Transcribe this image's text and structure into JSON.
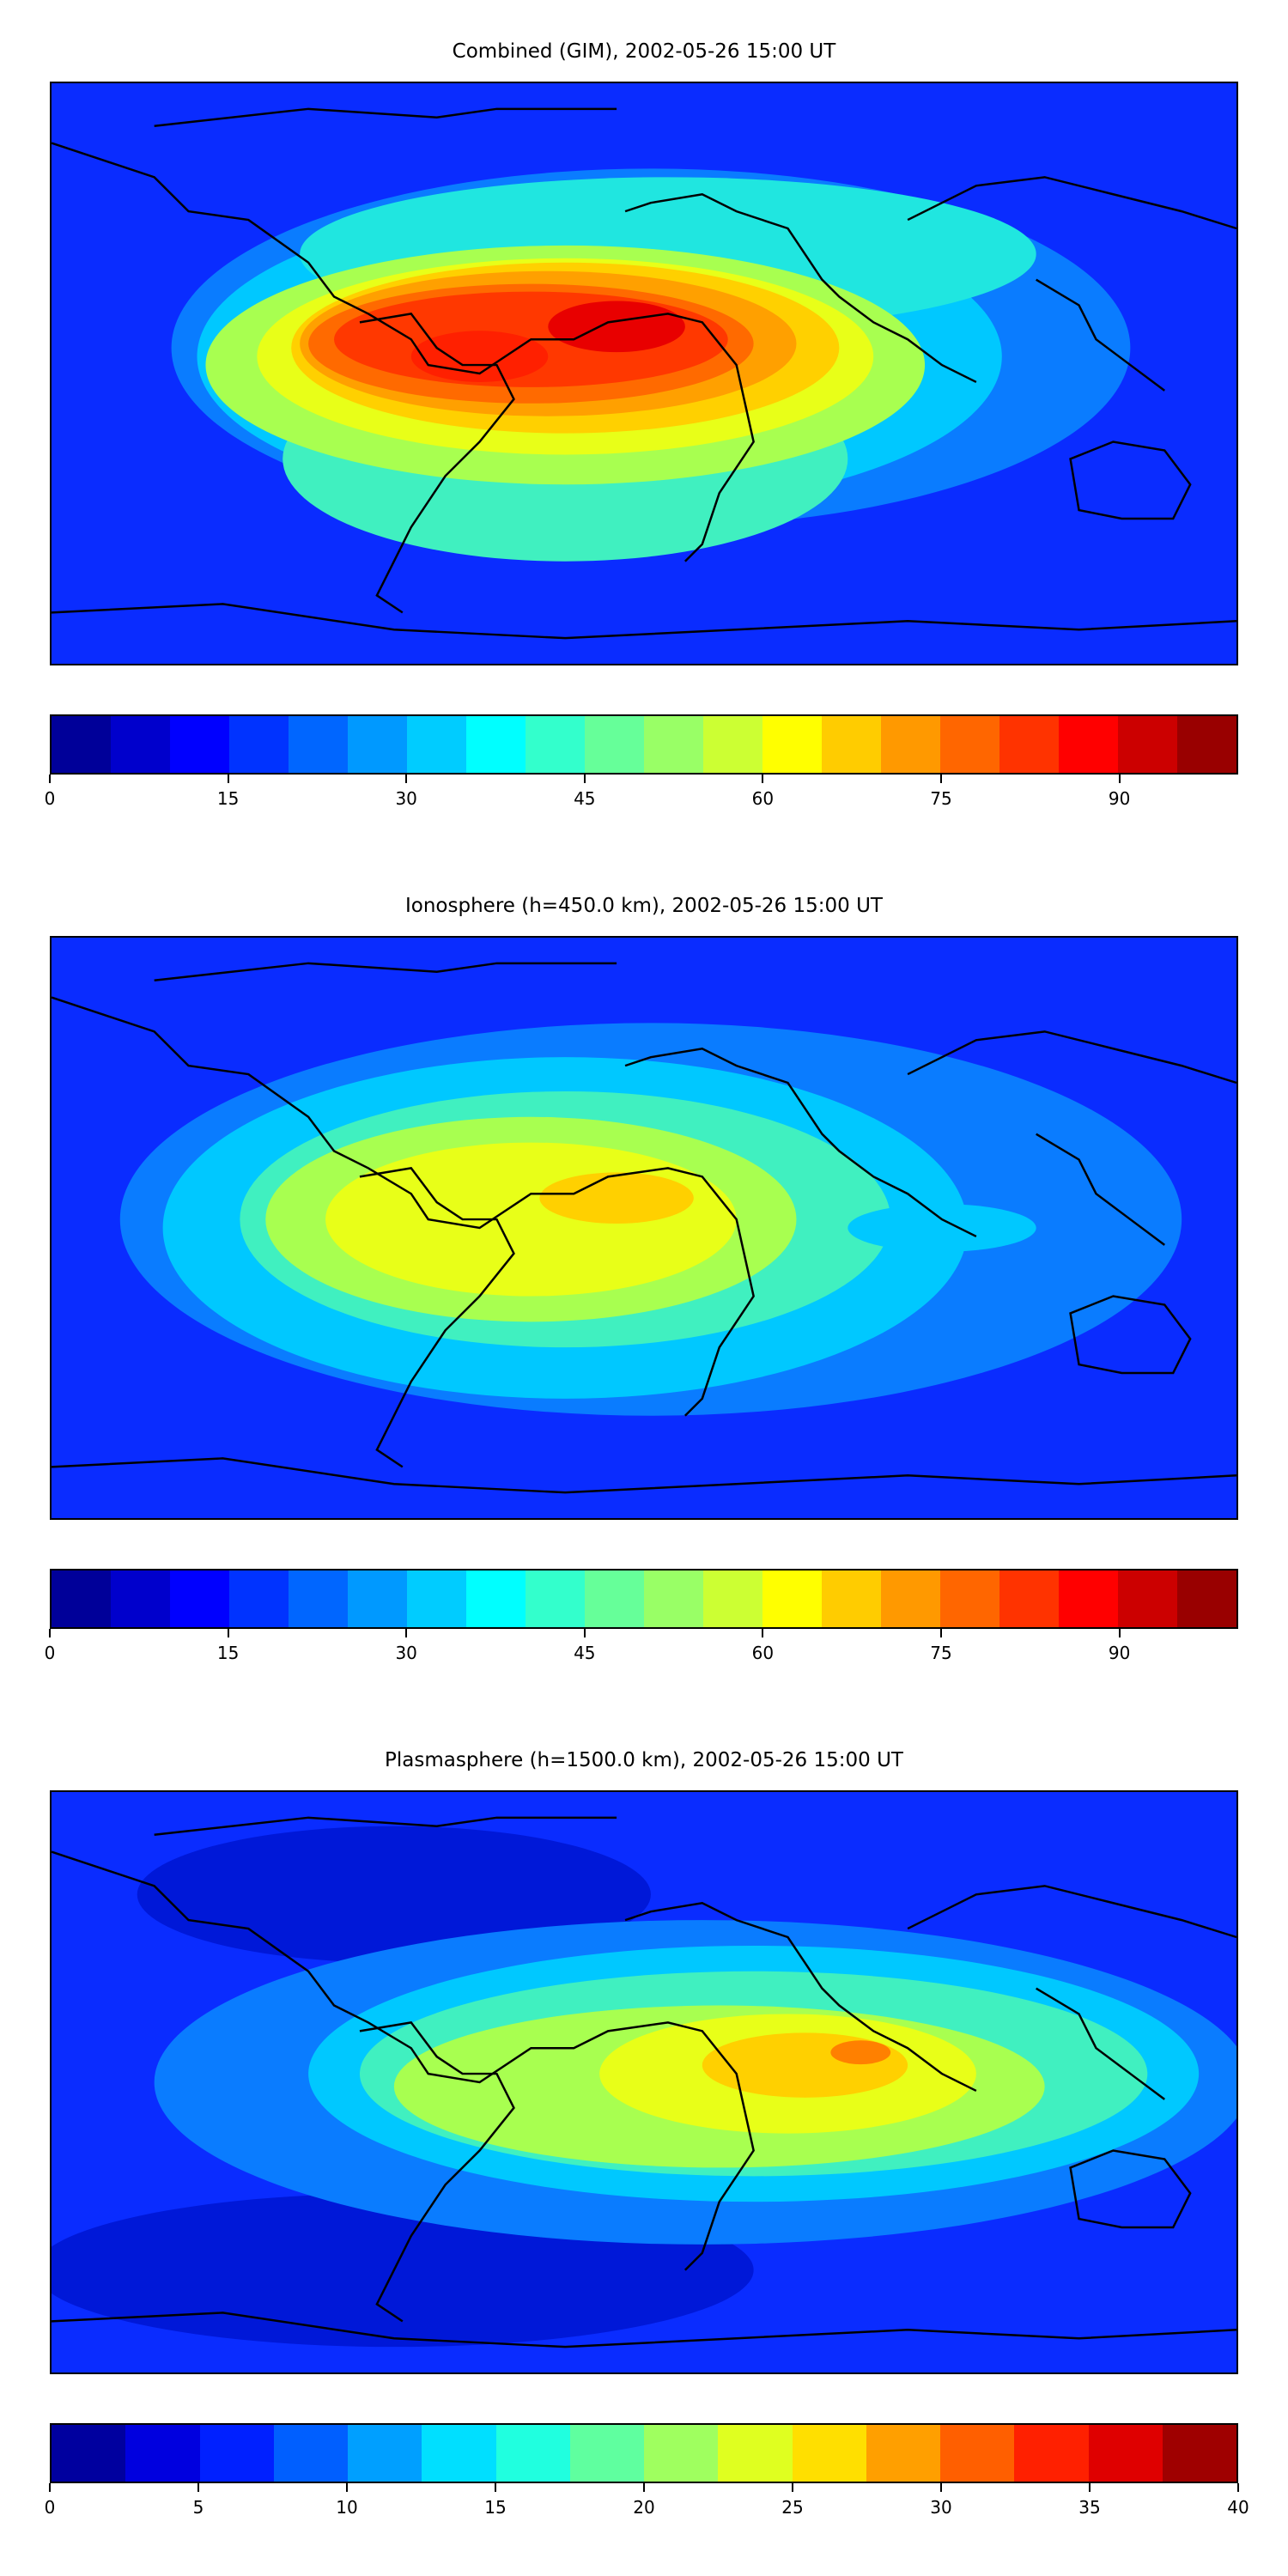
{
  "panels": [
    {
      "title": "Combined (GIM), 2002-05-26 15:00 UT",
      "colorbar": {
        "min": 0,
        "max": 100,
        "step": 5,
        "tick_labels": [
          "0",
          "15",
          "30",
          "45",
          "60",
          "75",
          "90"
        ],
        "tick_values": [
          0,
          15,
          30,
          45,
          60,
          75,
          90
        ]
      }
    },
    {
      "title": "Ionosphere  (h=450.0 km), 2002-05-26 15:00 UT",
      "colorbar": {
        "min": 0,
        "max": 100,
        "step": 5,
        "tick_labels": [
          "0",
          "15",
          "30",
          "45",
          "60",
          "75",
          "90"
        ],
        "tick_values": [
          0,
          15,
          30,
          45,
          60,
          75,
          90
        ]
      }
    },
    {
      "title": "Plasmasphere (h=1500.0 km), 2002-05-26 15:00 UT",
      "colorbar": {
        "min": 0,
        "max": 40,
        "step": 2.5,
        "tick_labels": [
          "0",
          "5",
          "10",
          "15",
          "20",
          "25",
          "30",
          "35",
          "40"
        ],
        "tick_values": [
          0,
          5,
          10,
          15,
          20,
          25,
          30,
          35,
          40
        ]
      }
    }
  ],
  "colormap": "jet",
  "colors": {
    "jet": [
      "#00007f",
      "#0000ff",
      "#007fff",
      "#00ffff",
      "#7fff7f",
      "#ffff00",
      "#ff7f00",
      "#ff0000",
      "#7f0000"
    ],
    "coastline": "#000000"
  }
}
